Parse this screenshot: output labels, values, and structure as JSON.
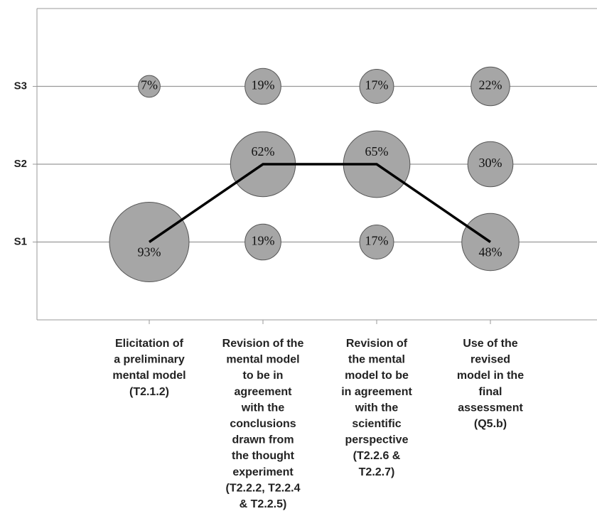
{
  "chart_data": {
    "type": "bubble",
    "categories": [
      [
        "Elicitation of",
        "a preliminary",
        "mental model",
        "(T2.1.2)"
      ],
      [
        "Revision of the",
        "mental model",
        "to be in",
        "agreement",
        "with the",
        "conclusions",
        "drawn from",
        "the thought",
        "experiment",
        "(T2.2.2, T2.2.4",
        "& T2.2.5)"
      ],
      [
        "Revision of",
        "the mental",
        "model to be",
        "in agreement",
        "with the",
        "scientific",
        "perspective",
        "(T2.2.6 &",
        "T2.2.7)"
      ],
      [
        "Use of the",
        "revised",
        "model in the",
        "final",
        "assessment",
        "(Q5.b)"
      ]
    ],
    "ylim": [
      0,
      4
    ],
    "yticks": [
      {
        "value": 1,
        "label": "S1"
      },
      {
        "value": 2,
        "label": "S2"
      },
      {
        "value": 3,
        "label": "S3"
      }
    ],
    "series": [
      {
        "y": 1,
        "values": [
          93,
          19,
          17,
          48
        ],
        "value_labels": [
          "93%",
          "19%",
          "17%",
          "48%"
        ]
      },
      {
        "y": 2,
        "values": [
          null,
          62,
          65,
          30
        ],
        "value_labels": [
          null,
          "62%",
          "65%",
          "30%"
        ]
      },
      {
        "y": 3,
        "values": [
          7,
          19,
          17,
          22
        ],
        "value_labels": [
          "7%",
          "19%",
          "17%",
          "22%"
        ]
      }
    ],
    "line": [
      1,
      2,
      2,
      1
    ],
    "color": "#a6a6a6",
    "line_color": "#000000",
    "grid": true
  }
}
